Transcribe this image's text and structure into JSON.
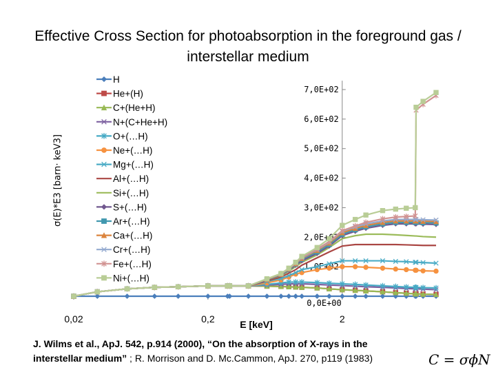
{
  "chart_data": {
    "type": "line",
    "title": "Effective Cross Section for photoabsorption in the foreground gas / interstellar medium",
    "ylabel": "σ(E)*E3 [barn· keV3]",
    "xlabel": "E [keV]",
    "x_scale": "log",
    "x_ticks": [
      "0,02",
      "0,2",
      "2"
    ],
    "y_ticks": [
      "0,0E+00",
      "1,0E+02",
      "2,0E+02",
      "3,0E+02",
      "4,0E+02",
      "5,0E+02",
      "6,0E+02",
      "7,0E+02"
    ],
    "ylim": [
      0,
      700
    ],
    "grid": false,
    "legend_position": "left",
    "x": [
      0.02,
      0.03,
      0.05,
      0.08,
      0.12,
      0.2,
      0.28,
      0.29,
      0.4,
      0.55,
      0.7,
      0.8,
      0.9,
      1.0,
      1.3,
      1.6,
      2.0,
      2.5,
      3.0,
      4.0,
      5.0,
      6.0,
      7.0,
      7.1,
      8.0,
      10.0
    ],
    "series": [
      {
        "name": "H",
        "color": "#4a7ebb",
        "marker": "diamond",
        "values": [
          0,
          0,
          0,
          0,
          0,
          0,
          0,
          0,
          0,
          0,
          0,
          0,
          0,
          0,
          0,
          0,
          0,
          0,
          0,
          0,
          0,
          0,
          0,
          0,
          0,
          0
        ]
      },
      {
        "name": "He+(H)",
        "color": "#be4b48",
        "marker": "square",
        "values": [
          0,
          15,
          25,
          30,
          32,
          35,
          35,
          35,
          35,
          34,
          33,
          32,
          31,
          30,
          28,
          25,
          22,
          20,
          18,
          15,
          12,
          10,
          8,
          8,
          7,
          6
        ]
      },
      {
        "name": "C+(He+H)",
        "color": "#98b954",
        "marker": "triangle",
        "values": [
          0,
          15,
          25,
          30,
          32,
          35,
          35,
          35,
          35,
          34,
          33,
          32,
          31,
          30,
          28,
          25,
          22,
          20,
          18,
          15,
          12,
          10,
          8,
          8,
          7,
          6
        ]
      },
      {
        "name": "N+(C+He+H)",
        "color": "#7d60a0",
        "marker": "x",
        "values": [
          0,
          15,
          25,
          30,
          32,
          35,
          35,
          35,
          35,
          38,
          40,
          42,
          42,
          42,
          40,
          38,
          36,
          34,
          32,
          30,
          28,
          26,
          25,
          25,
          24,
          22
        ]
      },
      {
        "name": "O+(…H)",
        "color": "#46aac5",
        "marker": "star",
        "values": [
          0,
          15,
          25,
          30,
          32,
          35,
          35,
          35,
          35,
          40,
          45,
          48,
          48,
          48,
          46,
          44,
          42,
          40,
          38,
          35,
          33,
          31,
          30,
          30,
          29,
          28
        ]
      },
      {
        "name": "Ne+(…H)",
        "color": "#f69240",
        "marker": "circle",
        "values": [
          0,
          15,
          25,
          30,
          32,
          35,
          35,
          35,
          35,
          45,
          55,
          65,
          75,
          80,
          90,
          95,
          100,
          100,
          98,
          95,
          92,
          90,
          88,
          88,
          86,
          85
        ]
      },
      {
        "name": "Mg+(…H)",
        "color": "#4bacc6",
        "marker": "x",
        "values": [
          0,
          15,
          25,
          30,
          32,
          35,
          35,
          35,
          35,
          50,
          60,
          70,
          80,
          90,
          100,
          110,
          120,
          120,
          120,
          120,
          118,
          117,
          115,
          115,
          114,
          112
        ]
      },
      {
        "name": "Al+(…H)",
        "color": "#aa4643",
        "marker": "none",
        "values": [
          0,
          15,
          25,
          30,
          32,
          35,
          35,
          35,
          35,
          52,
          65,
          78,
          90,
          105,
          130,
          150,
          170,
          175,
          175,
          175,
          175,
          174,
          173,
          173,
          172,
          172
        ]
      },
      {
        "name": "Si+(…H)",
        "color": "#9bbb59",
        "marker": "none",
        "values": [
          0,
          15,
          25,
          30,
          32,
          35,
          35,
          35,
          35,
          55,
          70,
          85,
          100,
          115,
          140,
          165,
          195,
          205,
          210,
          210,
          208,
          206,
          204,
          204,
          202,
          200
        ]
      },
      {
        "name": "S+(…H)",
        "color": "#71588f",
        "marker": "diamond",
        "values": [
          0,
          15,
          25,
          30,
          32,
          35,
          35,
          35,
          35,
          55,
          72,
          88,
          105,
          120,
          145,
          170,
          205,
          220,
          230,
          240,
          245,
          245,
          245,
          245,
          244,
          243
        ]
      },
      {
        "name": "Ar+(…H)",
        "color": "#4198af",
        "marker": "square",
        "values": [
          0,
          15,
          25,
          30,
          32,
          35,
          35,
          35,
          35,
          56,
          73,
          90,
          108,
          125,
          150,
          175,
          210,
          225,
          235,
          245,
          250,
          250,
          250,
          250,
          249,
          248
        ]
      },
      {
        "name": "Ca+(…H)",
        "color": "#db843d",
        "marker": "triangle",
        "values": [
          0,
          15,
          25,
          30,
          32,
          35,
          35,
          35,
          35,
          57,
          74,
          92,
          110,
          128,
          155,
          180,
          215,
          230,
          240,
          250,
          255,
          255,
          255,
          255,
          254,
          253
        ]
      },
      {
        "name": "Cr+(…H)",
        "color": "#93a9cf",
        "marker": "x",
        "values": [
          0,
          15,
          25,
          30,
          32,
          35,
          35,
          35,
          35,
          58,
          75,
          93,
          112,
          130,
          158,
          183,
          220,
          235,
          245,
          255,
          260,
          260,
          260,
          260,
          259,
          258
        ]
      },
      {
        "name": "Fe+(…H)",
        "color": "#d19392",
        "marker": "star",
        "values": [
          0,
          15,
          25,
          30,
          32,
          35,
          35,
          35,
          35,
          58,
          76,
          94,
          113,
          132,
          160,
          185,
          222,
          238,
          250,
          262,
          268,
          270,
          272,
          630,
          650,
          680
        ]
      },
      {
        "name": "Ni+(…H)",
        "color": "#b9cd96",
        "marker": "square",
        "values": [
          0,
          15,
          25,
          30,
          32,
          35,
          35,
          35,
          35,
          59,
          77,
          95,
          115,
          135,
          165,
          195,
          240,
          260,
          275,
          290,
          295,
          298,
          300,
          640,
          660,
          690
        ]
      }
    ]
  },
  "citation": {
    "bold_text": "J. Wilms et al., ApJ. 542, p.914 (2000), “On the absorption of X-rays in the interstellar medium”",
    "rest_text": " ; R. Morrison and D. Mc.Cammon, ApJ. 270, p119 (1983)"
  },
  "formula": "C = σϕN"
}
